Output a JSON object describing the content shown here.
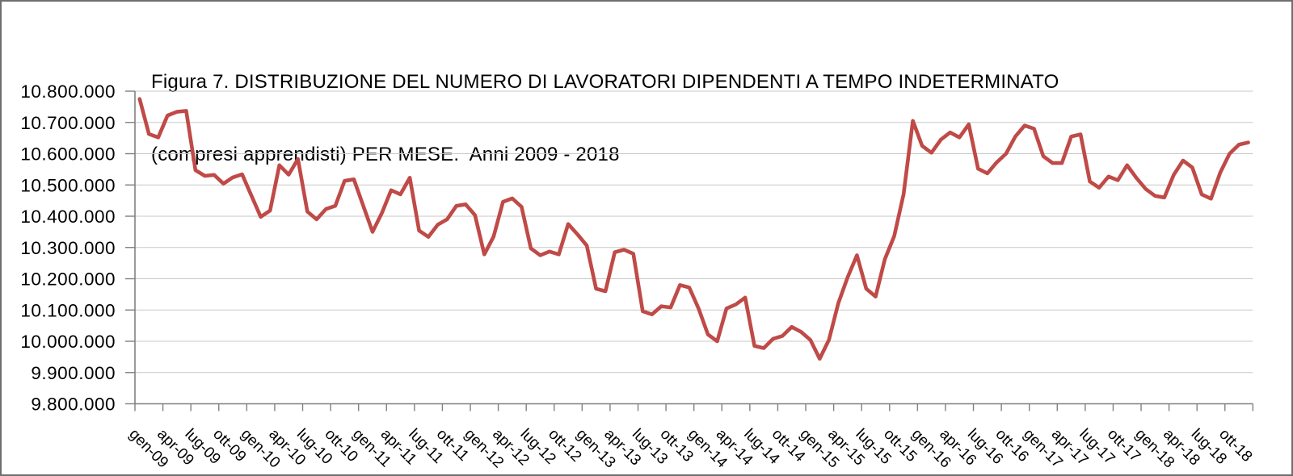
{
  "figure": {
    "title_line1": "Figura 7. DISTRIBUZIONE DEL NUMERO DI LAVORATORI DIPENDENTI A TEMPO INDETERMINATO",
    "title_line2": "(compresi apprendisti) PER MESE.  Anni 2009 - 2018"
  },
  "colors": {
    "series": "#BF4A47",
    "gridline": "#c8c8c8",
    "axis": "#808080",
    "tick": "#808080",
    "label_text": "#000000",
    "title_text": "#000000",
    "background": "#ffffff",
    "frame_border": "#6e6e6e"
  },
  "chart_data": {
    "type": "line",
    "title": "Figura 7. DISTRIBUZIONE DEL NUMERO DI LAVORATORI DIPENDENTI A TEMPO INDETERMINATO (compresi apprendisti) PER MESE.  Anni 2009 - 2018",
    "xlabel": "",
    "ylabel": "",
    "ylim": [
      9800000,
      10800000
    ],
    "y_tick_step": 100000,
    "grid": true,
    "legend": false,
    "x_label_rotation_deg": 45,
    "x_labels_shown_every_n_months": 3,
    "y_tick_labels": [
      "10.800.000",
      "10.700.000",
      "10.600.000",
      "10.500.000",
      "10.400.000",
      "10.300.000",
      "10.200.000",
      "10.100.000",
      "10.000.000",
      "9.900.000",
      "9.800.000"
    ],
    "x_tick_labels": [
      "gen-09",
      "apr-09",
      "lug-09",
      "ott-09",
      "gen-10",
      "apr-10",
      "lug-10",
      "ott-10",
      "gen-11",
      "apr-11",
      "lug-11",
      "ott-11",
      "gen-12",
      "apr-12",
      "lug-12",
      "ott-12",
      "gen-13",
      "apr-13",
      "lug-13",
      "ott-13",
      "gen-14",
      "apr-14",
      "lug-14",
      "ott-14",
      "gen-15",
      "apr-15",
      "lug-15",
      "ott-15",
      "gen-16",
      "apr-16",
      "lug-16",
      "ott-16",
      "gen-17",
      "apr-17",
      "lug-17",
      "ott-17",
      "gen-18",
      "apr-18",
      "lug-18",
      "ott-18"
    ],
    "months": [
      "gen-09",
      "feb-09",
      "mar-09",
      "apr-09",
      "mag-09",
      "giu-09",
      "lug-09",
      "ago-09",
      "set-09",
      "ott-09",
      "nov-09",
      "dic-09",
      "gen-10",
      "feb-10",
      "mar-10",
      "apr-10",
      "mag-10",
      "giu-10",
      "lug-10",
      "ago-10",
      "set-10",
      "ott-10",
      "nov-10",
      "dic-10",
      "gen-11",
      "feb-11",
      "mar-11",
      "apr-11",
      "mag-11",
      "giu-11",
      "lug-11",
      "ago-11",
      "set-11",
      "ott-11",
      "nov-11",
      "dic-11",
      "gen-12",
      "feb-12",
      "mar-12",
      "apr-12",
      "mag-12",
      "giu-12",
      "lug-12",
      "ago-12",
      "set-12",
      "ott-12",
      "nov-12",
      "dic-12",
      "gen-13",
      "feb-13",
      "mar-13",
      "apr-13",
      "mag-13",
      "giu-13",
      "lug-13",
      "ago-13",
      "set-13",
      "ott-13",
      "nov-13",
      "dic-13",
      "gen-14",
      "feb-14",
      "mar-14",
      "apr-14",
      "mag-14",
      "giu-14",
      "lug-14",
      "ago-14",
      "set-14",
      "ott-14",
      "nov-14",
      "dic-14",
      "gen-15",
      "feb-15",
      "mar-15",
      "apr-15",
      "mag-15",
      "giu-15",
      "lug-15",
      "ago-15",
      "set-15",
      "ott-15",
      "nov-15",
      "dic-15",
      "gen-16",
      "feb-16",
      "mar-16",
      "apr-16",
      "mag-16",
      "giu-16",
      "lug-16",
      "ago-16",
      "set-16",
      "ott-16",
      "nov-16",
      "dic-16",
      "gen-17",
      "feb-17",
      "mar-17",
      "apr-17",
      "mag-17",
      "giu-17",
      "lug-17",
      "ago-17",
      "set-17",
      "ott-17",
      "nov-17",
      "dic-17",
      "gen-18",
      "feb-18",
      "mar-18",
      "apr-18",
      "mag-18",
      "giu-18",
      "lug-18",
      "ago-18",
      "set-18",
      "ott-18",
      "nov-18",
      "dic-18"
    ],
    "values": [
      10775000,
      10663000,
      10652000,
      10722000,
      10734000,
      10737000,
      10547000,
      10529000,
      10532000,
      10504000,
      10524000,
      10534000,
      10466000,
      10398000,
      10418000,
      10563000,
      10533000,
      10583000,
      10415000,
      10390000,
      10423000,
      10433000,
      10513000,
      10518000,
      10434000,
      10350000,
      10410000,
      10483000,
      10470000,
      10523000,
      10354000,
      10334000,
      10373000,
      10390000,
      10433000,
      10438000,
      10403000,
      10278000,
      10335000,
      10446000,
      10457000,
      10430000,
      10297000,
      10275000,
      10287000,
      10278000,
      10375000,
      10342000,
      10306000,
      10168000,
      10160000,
      10285000,
      10293000,
      10280000,
      10096000,
      10086000,
      10112000,
      10108000,
      10180000,
      10172000,
      10105000,
      10022000,
      10000000,
      10105000,
      10118000,
      10140000,
      9985000,
      9978000,
      10008000,
      10017000,
      10046000,
      10030000,
      10004000,
      9944000,
      10005000,
      10122000,
      10205000,
      10275000,
      10168000,
      10143000,
      10263000,
      10336000,
      10470000,
      10705000,
      10625000,
      10603000,
      10645000,
      10668000,
      10652000,
      10694000,
      10552000,
      10537000,
      10572000,
      10600000,
      10655000,
      10690000,
      10680000,
      10592000,
      10570000,
      10570000,
      10655000,
      10662000,
      10511000,
      10491000,
      10527000,
      10515000,
      10563000,
      10522000,
      10487000,
      10465000,
      10460000,
      10532000,
      10578000,
      10556000,
      10470000,
      10456000,
      10540000,
      10600000,
      10629000,
      10636000
    ]
  }
}
